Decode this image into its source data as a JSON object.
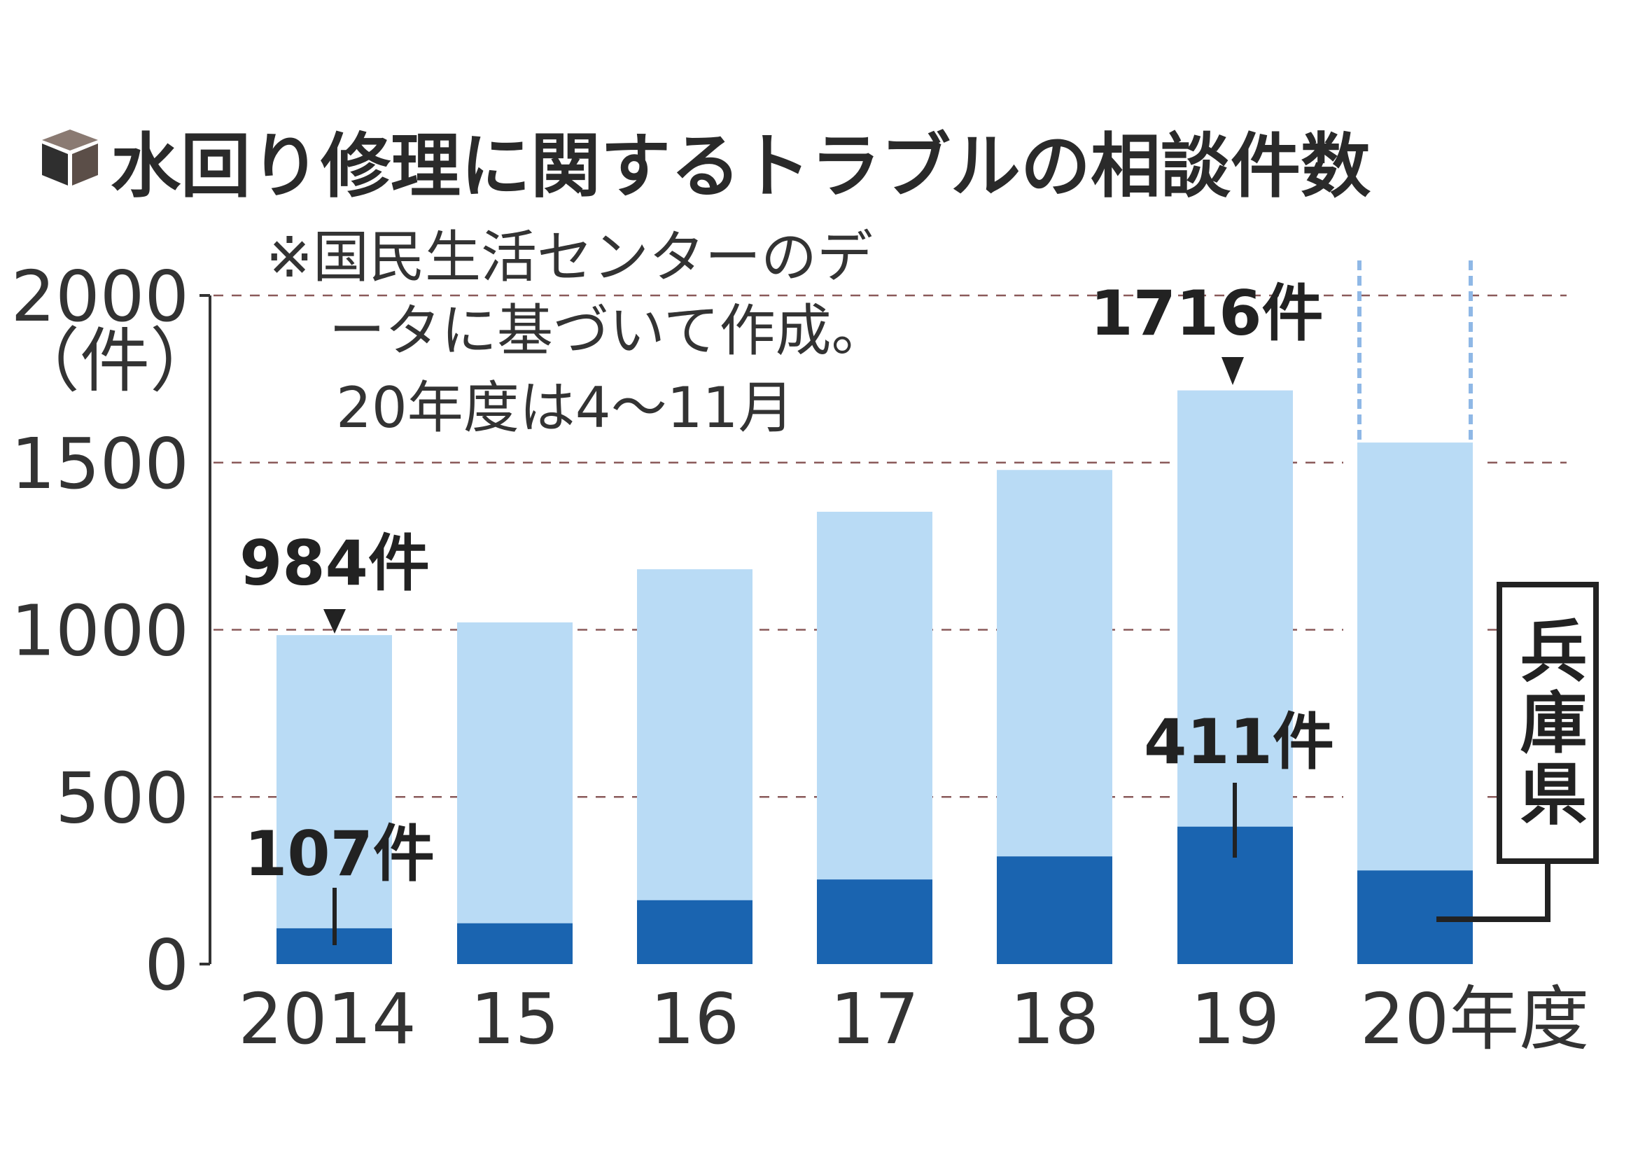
{
  "chart_data": {
    "type": "bar",
    "title": "水回り修理に関するトラブルの相談件数",
    "note": [
      "※国民生活センターのデ",
      "ータに基づいて作成。",
      "20年度は4～11月"
    ],
    "ylabel": "（件）",
    "ylim": [
      0,
      2000
    ],
    "yticks": [
      "0",
      "500",
      "1000",
      "1500",
      "2000"
    ],
    "grid": true,
    "categories": [
      "2014",
      "15",
      "16",
      "17",
      "18",
      "19",
      "20年度"
    ],
    "series": [
      {
        "name": "",
        "values": [
          984,
          1022,
          1181,
          1353,
          1478,
          1716,
          1560
        ],
        "color": "#b9dbf5"
      },
      {
        "name": "兵庫県",
        "values": [
          107,
          122,
          191,
          253,
          322,
          411,
          280
        ],
        "color": "#1a64b0"
      }
    ],
    "annotations": {
      "a2014_total": "984件",
      "a2014_hyogo": "107件",
      "a2019_total": "1716件",
      "a2019_hyogo": "411件"
    },
    "legend_label": "兵庫県",
    "partial_year_note": "20年度 bar drawn with dashed extension (partial year)"
  },
  "colors": {
    "grid": "#8a5a5a",
    "axis": "#333333",
    "text": "#2a2a2a"
  }
}
